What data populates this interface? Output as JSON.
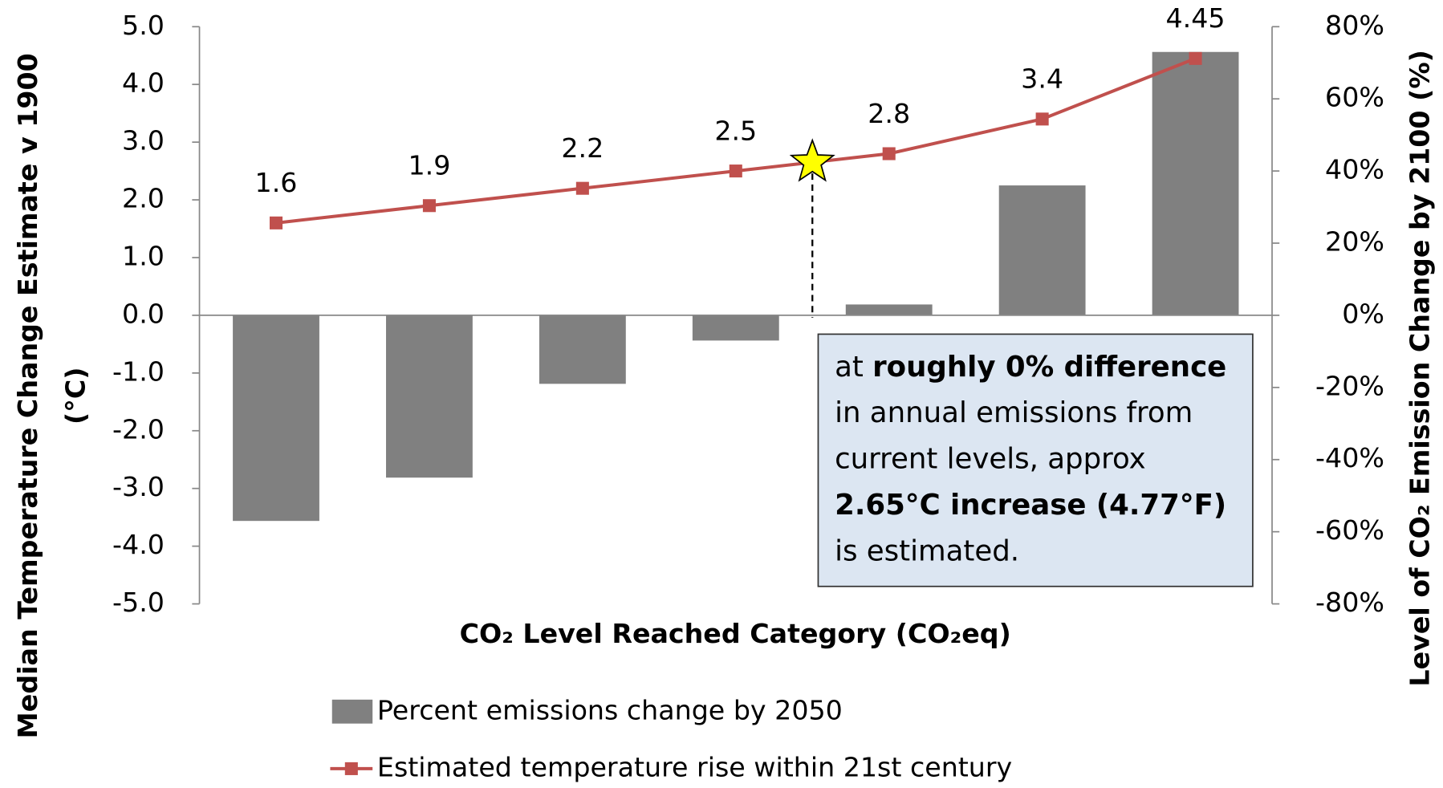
{
  "chart_data": {
    "type": "bar_line",
    "categories": [
      null,
      null,
      null,
      null,
      null,
      null,
      null
    ],
    "ylabel": [
      "Median Temperature Change Estimate v 1900",
      "(°C)"
    ],
    "y2label": "Level of CO₂ Emission Change by 2100 (%)",
    "xlabel": "CO₂ Level Reached Category (CO₂eq)",
    "ylim": [
      -5,
      5
    ],
    "yticks": [
      {
        "value": -5,
        "label": "-5.0"
      },
      {
        "value": -4,
        "label": "-4.0"
      },
      {
        "value": -3,
        "label": "-3.0"
      },
      {
        "value": -2,
        "label": "-2.0"
      },
      {
        "value": -1,
        "label": "-1.0"
      },
      {
        "value": 0,
        "label": "0.0"
      },
      {
        "value": 1,
        "label": "1.0"
      },
      {
        "value": 2,
        "label": "2.0"
      },
      {
        "value": 3,
        "label": "3.0"
      },
      {
        "value": 4,
        "label": "4.0"
      },
      {
        "value": 5,
        "label": "5.0"
      }
    ],
    "y2lim": [
      -80,
      80
    ],
    "y2ticks": [
      {
        "value": -80,
        "label": "-80%"
      },
      {
        "value": -60,
        "label": "-60%"
      },
      {
        "value": -40,
        "label": "-40%"
      },
      {
        "value": -20,
        "label": "-20%"
      },
      {
        "value": 0,
        "label": "0%"
      },
      {
        "value": 20,
        "label": "20%"
      },
      {
        "value": 40,
        "label": "40%"
      },
      {
        "value": 60,
        "label": "60%"
      },
      {
        "value": 80,
        "label": "80%"
      }
    ],
    "series": [
      {
        "name": "Percent emissions change by 2050",
        "type": "bar",
        "axis": "y2",
        "color": "#808080",
        "values": [
          -57,
          -45,
          -19,
          -7,
          3,
          36,
          73
        ]
      },
      {
        "name": "Estimated temperature rise within 21st century",
        "type": "line",
        "color": "#c0504d",
        "values": [
          1.6,
          1.9,
          2.2,
          2.5,
          2.8,
          3.4,
          4.45
        ]
      }
    ],
    "marker": {
      "y": 2.65,
      "color": "#ffff00"
    },
    "annotation": [
      [
        {
          "text": "at "
        },
        {
          "text": "roughly 0% difference",
          "bold": true
        }
      ],
      [
        {
          "text": "in annual emissions from"
        }
      ],
      [
        {
          "text": "current levels, approx"
        }
      ],
      [
        {
          "text": "2.65°C increase (4.77°F)",
          "bold": true
        }
      ],
      [
        {
          "text": "is estimated."
        }
      ]
    ]
  }
}
